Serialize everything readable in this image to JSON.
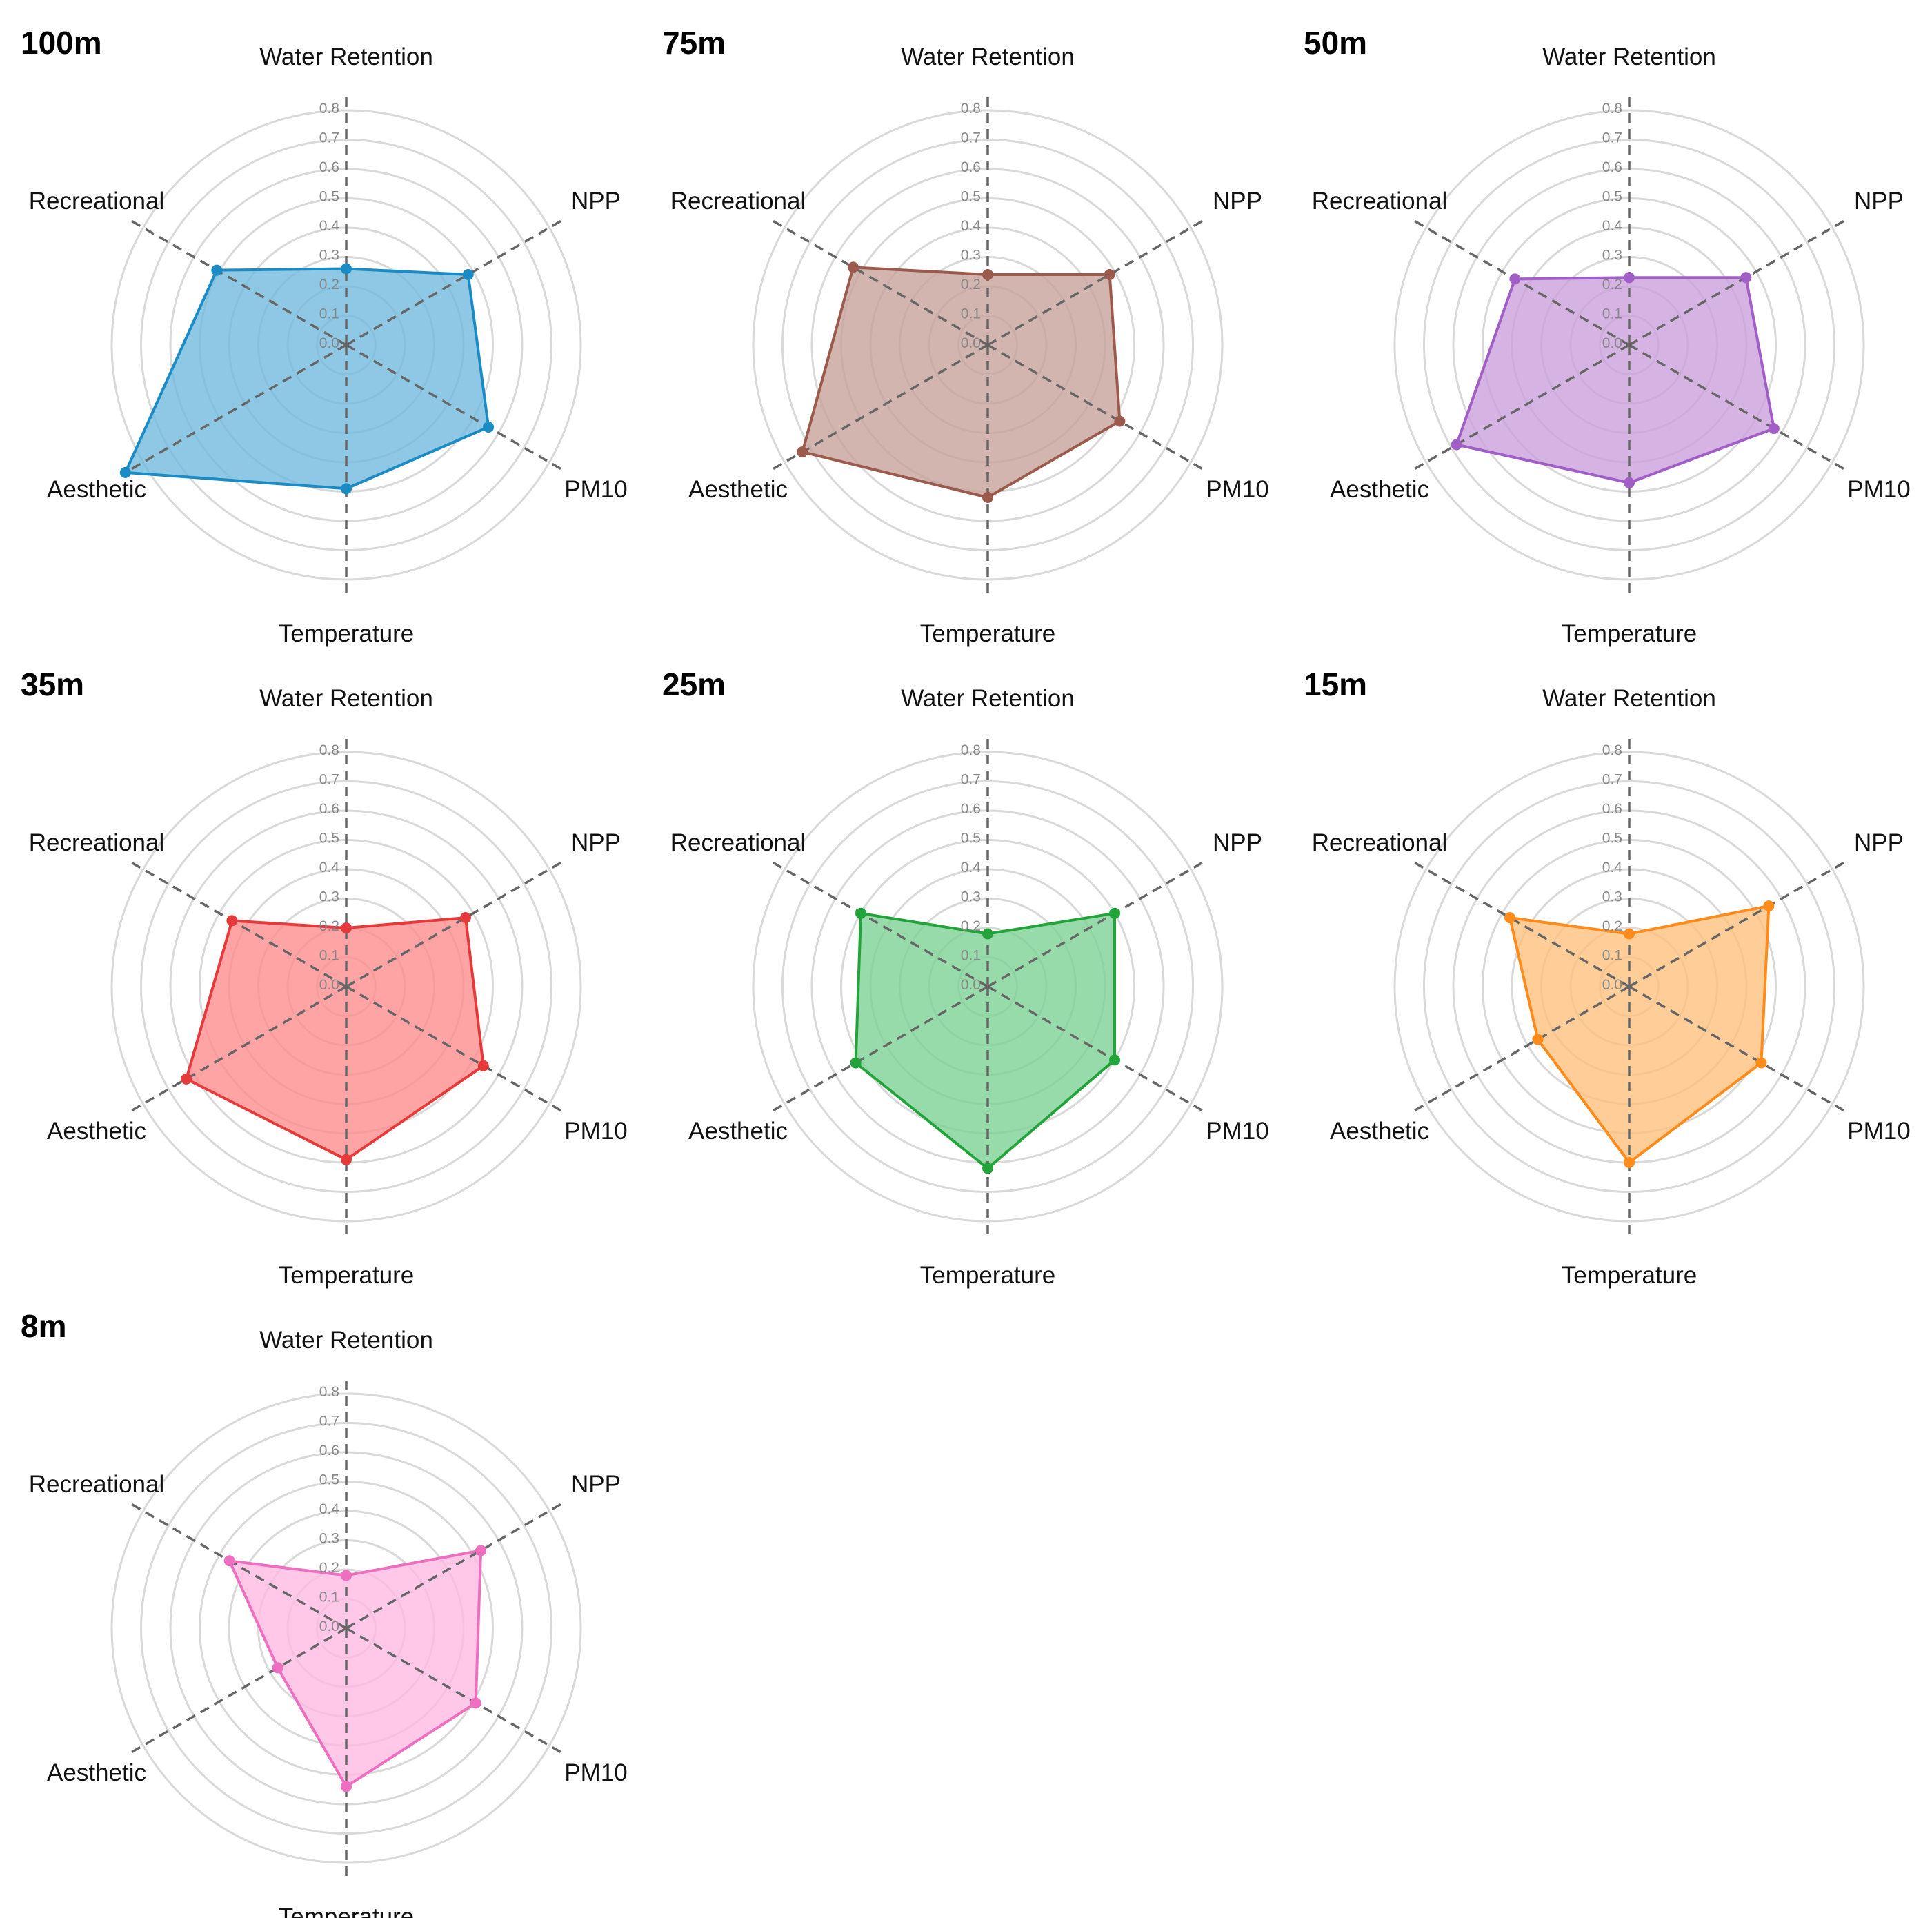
{
  "figure": {
    "axes": [
      "Water Retention",
      "NPP",
      "PM10",
      "Temperature",
      "Aesthetic",
      "Recreational"
    ],
    "ticks": [
      "0.0",
      "0.1",
      "0.2",
      "0.3",
      "0.4",
      "0.5",
      "0.6",
      "0.7",
      "0.8"
    ]
  },
  "chart_data": [
    {
      "type": "radar",
      "title": "100m",
      "color": "#1a8bc5",
      "fill": "#6fb9dc",
      "axes": [
        "Water Retention",
        "NPP",
        "PM10",
        "Temperature",
        "Aesthetic",
        "Recreational"
      ],
      "values": [
        0.26,
        0.48,
        0.56,
        0.49,
        0.87,
        0.51
      ],
      "rlim": [
        0,
        0.8
      ]
    },
    {
      "type": "radar",
      "title": "75m",
      "color": "#9c5a4c",
      "fill": "#c4a097",
      "axes": [
        "Water Retention",
        "NPP",
        "PM10",
        "Temperature",
        "Aesthetic",
        "Recreational"
      ],
      "values": [
        0.24,
        0.48,
        0.52,
        0.52,
        0.73,
        0.53
      ],
      "rlim": [
        0,
        0.8
      ]
    },
    {
      "type": "radar",
      "title": "50m",
      "color": "#a25ec7",
      "fill": "#c99fdd",
      "axes": [
        "Water Retention",
        "NPP",
        "PM10",
        "Temperature",
        "Aesthetic",
        "Recreational"
      ],
      "values": [
        0.23,
        0.46,
        0.57,
        0.47,
        0.68,
        0.45
      ],
      "rlim": [
        0,
        0.8
      ]
    },
    {
      "type": "radar",
      "title": "35m",
      "color": "#e63a3a",
      "fill": "#ff8a8a",
      "axes": [
        "Water Retention",
        "NPP",
        "PM10",
        "Temperature",
        "Aesthetic",
        "Recreational"
      ],
      "values": [
        0.2,
        0.47,
        0.54,
        0.59,
        0.63,
        0.45
      ],
      "rlim": [
        0,
        0.8
      ]
    },
    {
      "type": "radar",
      "title": "25m",
      "color": "#22a43a",
      "fill": "#7bd192",
      "axes": [
        "Water Retention",
        "NPP",
        "PM10",
        "Temperature",
        "Aesthetic",
        "Recreational"
      ],
      "values": [
        0.18,
        0.5,
        0.5,
        0.62,
        0.52,
        0.5
      ],
      "rlim": [
        0,
        0.8
      ]
    },
    {
      "type": "radar",
      "title": "15m",
      "color": "#ff8c1a",
      "fill": "#ffbf7a",
      "axes": [
        "Water Retention",
        "NPP",
        "PM10",
        "Temperature",
        "Aesthetic",
        "Recreational"
      ],
      "values": [
        0.18,
        0.55,
        0.52,
        0.6,
        0.36,
        0.47
      ],
      "rlim": [
        0,
        0.8
      ]
    },
    {
      "type": "radar",
      "title": "8m",
      "color": "#ee6ec0",
      "fill": "#ffb9e2",
      "axes": [
        "Water Retention",
        "NPP",
        "PM10",
        "Temperature",
        "Aesthetic",
        "Recreational"
      ],
      "values": [
        0.18,
        0.53,
        0.51,
        0.54,
        0.27,
        0.46
      ],
      "rlim": [
        0,
        0.8
      ]
    }
  ]
}
